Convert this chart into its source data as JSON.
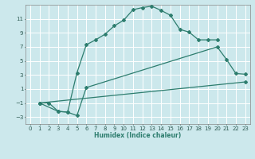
{
  "xlabel": "Humidex (Indice chaleur)",
  "bg_color": "#cce8ec",
  "line_color": "#2d7d6e",
  "grid_color": "#ffffff",
  "xlim": [
    -0.5,
    23.5
  ],
  "ylim": [
    -4,
    13
  ],
  "xticks": [
    0,
    1,
    2,
    3,
    4,
    5,
    6,
    7,
    8,
    9,
    10,
    11,
    12,
    13,
    14,
    15,
    16,
    17,
    18,
    19,
    20,
    21,
    22,
    23
  ],
  "yticks": [
    -3,
    -1,
    1,
    3,
    5,
    7,
    9,
    11
  ],
  "line1_x": [
    1,
    2,
    3,
    4,
    5,
    6,
    7,
    8,
    9,
    10,
    11,
    12,
    13,
    14,
    15,
    16,
    17,
    18,
    19,
    20
  ],
  "line1_y": [
    -1,
    -1,
    -2.2,
    -2.3,
    3.3,
    7.3,
    8.0,
    8.8,
    10.0,
    10.8,
    12.3,
    12.6,
    12.8,
    12.2,
    11.5,
    9.5,
    9.1,
    8.0,
    8.0,
    8.0
  ],
  "line2_x": [
    1,
    3,
    4,
    5,
    6,
    20,
    21,
    22,
    23
  ],
  "line2_y": [
    -1,
    -2.2,
    -2.3,
    -2.8,
    1.2,
    7.0,
    5.2,
    3.2,
    3.1
  ],
  "line3_x": [
    1,
    23
  ],
  "line3_y": [
    -1,
    2.0
  ]
}
